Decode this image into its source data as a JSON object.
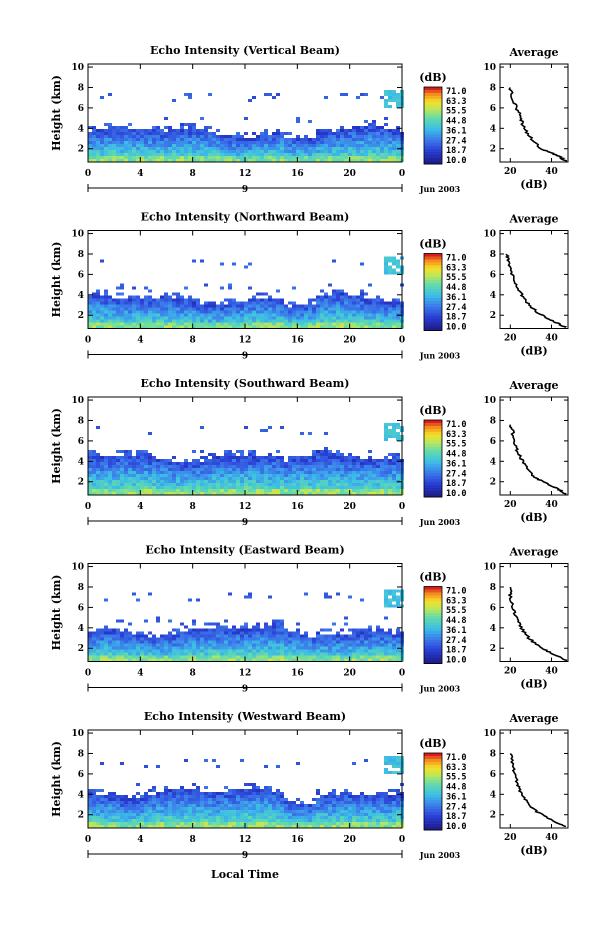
{
  "figure": {
    "xlabel": "Local Time",
    "date_label": "Jun 2003",
    "day_label": "9"
  },
  "chart_data": [
    {
      "type": "heatmap",
      "title": "Echo Intensity (Vertical Beam)",
      "ylabel": "Height (km)",
      "x_ticks": [
        "0",
        "4",
        "8",
        "12",
        "16",
        "20",
        "0"
      ],
      "y_ticks": [
        "2",
        "4",
        "6",
        "8",
        "10"
      ],
      "xlim": [
        0,
        24
      ],
      "ylim": [
        0.7,
        10.3
      ],
      "colorbar_unit": "(dB)",
      "colorbar_labels": [
        "71.0",
        "63.3",
        "55.5",
        "44.8",
        "36.1",
        "27.4",
        "18.7",
        "10.0"
      ],
      "echo_top_km": 3.8,
      "inset": {
        "title": "Average",
        "xlabel": "(dB)",
        "x_ticks": [
          "20",
          "40"
        ],
        "y_ticks": [
          "2",
          "4",
          "6",
          "8",
          "10"
        ],
        "xlim": [
          15,
          48
        ],
        "ylim": [
          0.7,
          10.3
        ],
        "profile": [
          [
            47,
            0.8
          ],
          [
            44,
            1.2
          ],
          [
            40,
            1.6
          ],
          [
            35,
            2.0
          ],
          [
            31,
            2.8
          ],
          [
            28,
            3.6
          ],
          [
            26,
            4.4
          ],
          [
            25,
            5.2
          ],
          [
            23,
            6.0
          ],
          [
            21,
            7.0
          ],
          [
            20,
            8.0
          ]
        ]
      }
    },
    {
      "type": "heatmap",
      "title": "Echo Intensity (Northward Beam)",
      "ylabel": "Height (km)",
      "x_ticks": [
        "0",
        "4",
        "8",
        "12",
        "16",
        "20",
        "0"
      ],
      "y_ticks": [
        "2",
        "4",
        "6",
        "8",
        "10"
      ],
      "xlim": [
        0,
        24
      ],
      "ylim": [
        0.7,
        10.3
      ],
      "colorbar_unit": "(dB)",
      "colorbar_labels": [
        "71.0",
        "63.3",
        "55.5",
        "44.8",
        "36.1",
        "27.4",
        "18.7",
        "10.0"
      ],
      "echo_top_km": 3.7,
      "inset": {
        "title": "Average",
        "xlabel": "(dB)",
        "x_ticks": [
          "20",
          "40"
        ],
        "y_ticks": [
          "2",
          "4",
          "6",
          "8",
          "10"
        ],
        "xlim": [
          15,
          48
        ],
        "ylim": [
          0.7,
          10.3
        ],
        "profile": [
          [
            47,
            0.8
          ],
          [
            43,
            1.2
          ],
          [
            38,
            1.7
          ],
          [
            33,
            2.3
          ],
          [
            29,
            3.0
          ],
          [
            26,
            3.8
          ],
          [
            24,
            4.6
          ],
          [
            22,
            5.4
          ],
          [
            20,
            6.4
          ],
          [
            19,
            7.4
          ],
          [
            18,
            8.0
          ]
        ]
      }
    },
    {
      "type": "heatmap",
      "title": "Echo Intensity (Southward Beam)",
      "ylabel": "Height (km)",
      "x_ticks": [
        "0",
        "4",
        "8",
        "12",
        "16",
        "20",
        "0"
      ],
      "y_ticks": [
        "2",
        "4",
        "6",
        "8",
        "10"
      ],
      "xlim": [
        0,
        24
      ],
      "ylim": [
        0.7,
        10.3
      ],
      "colorbar_unit": "(dB)",
      "colorbar_labels": [
        "71.0",
        "63.3",
        "55.5",
        "44.8",
        "36.1",
        "27.4",
        "18.7",
        "10.0"
      ],
      "echo_top_km": 4.6,
      "inset": {
        "title": "Average",
        "xlabel": "(dB)",
        "x_ticks": [
          "20",
          "40"
        ],
        "y_ticks": [
          "2",
          "4",
          "6",
          "8",
          "10"
        ],
        "xlim": [
          15,
          48
        ],
        "ylim": [
          0.7,
          10.3
        ],
        "profile": [
          [
            47,
            0.8
          ],
          [
            43,
            1.3
          ],
          [
            38,
            1.8
          ],
          [
            33,
            2.3
          ],
          [
            30,
            2.8
          ],
          [
            27,
            3.6
          ],
          [
            25,
            4.4
          ],
          [
            23,
            5.2
          ],
          [
            22,
            6.0
          ],
          [
            21,
            7.0
          ],
          [
            20,
            7.6
          ]
        ]
      }
    },
    {
      "type": "heatmap",
      "title": "Echo Intensity (Eastward Beam)",
      "ylabel": "Height (km)",
      "x_ticks": [
        "0",
        "4",
        "8",
        "12",
        "16",
        "20",
        "0"
      ],
      "y_ticks": [
        "2",
        "4",
        "6",
        "8",
        "10"
      ],
      "xlim": [
        0,
        24
      ],
      "ylim": [
        0.7,
        10.3
      ],
      "colorbar_unit": "(dB)",
      "colorbar_labels": [
        "71.0",
        "63.3",
        "55.5",
        "44.8",
        "36.1",
        "27.4",
        "18.7",
        "10.0"
      ],
      "echo_top_km": 3.9,
      "inset": {
        "title": "Average",
        "xlabel": "(dB)",
        "x_ticks": [
          "20",
          "40"
        ],
        "y_ticks": [
          "2",
          "4",
          "6",
          "8",
          "10"
        ],
        "xlim": [
          15,
          48
        ],
        "ylim": [
          0.7,
          10.3
        ],
        "profile": [
          [
            47,
            0.8
          ],
          [
            43,
            1.2
          ],
          [
            38,
            1.7
          ],
          [
            33,
            2.3
          ],
          [
            29,
            3.0
          ],
          [
            26,
            3.8
          ],
          [
            24,
            4.6
          ],
          [
            22,
            5.4
          ],
          [
            21,
            6.2
          ],
          [
            20,
            7.2
          ],
          [
            20,
            8.0
          ]
        ]
      }
    },
    {
      "type": "heatmap",
      "title": "Echo Intensity (Westward Beam)",
      "ylabel": "Height (km)",
      "x_ticks": [
        "0",
        "4",
        "8",
        "12",
        "16",
        "20",
        "0"
      ],
      "y_ticks": [
        "2",
        "4",
        "6",
        "8",
        "10"
      ],
      "xlim": [
        0,
        24
      ],
      "ylim": [
        0.7,
        10.3
      ],
      "colorbar_unit": "(dB)",
      "colorbar_labels": [
        "71.0",
        "63.3",
        "55.5",
        "44.8",
        "36.1",
        "27.4",
        "18.7",
        "10.0"
      ],
      "echo_top_km": 4.3,
      "inset": {
        "title": "Average",
        "xlabel": "(dB)",
        "x_ticks": [
          "20",
          "40"
        ],
        "y_ticks": [
          "2",
          "4",
          "6",
          "8",
          "10"
        ],
        "xlim": [
          15,
          48
        ],
        "ylim": [
          0.7,
          10.3
        ],
        "profile": [
          [
            47,
            0.8
          ],
          [
            43,
            1.2
          ],
          [
            38,
            1.7
          ],
          [
            33,
            2.3
          ],
          [
            29,
            3.0
          ],
          [
            26,
            3.8
          ],
          [
            24,
            4.6
          ],
          [
            23,
            5.4
          ],
          [
            22,
            6.2
          ],
          [
            21,
            7.0
          ],
          [
            20,
            8.0
          ]
        ]
      }
    }
  ]
}
